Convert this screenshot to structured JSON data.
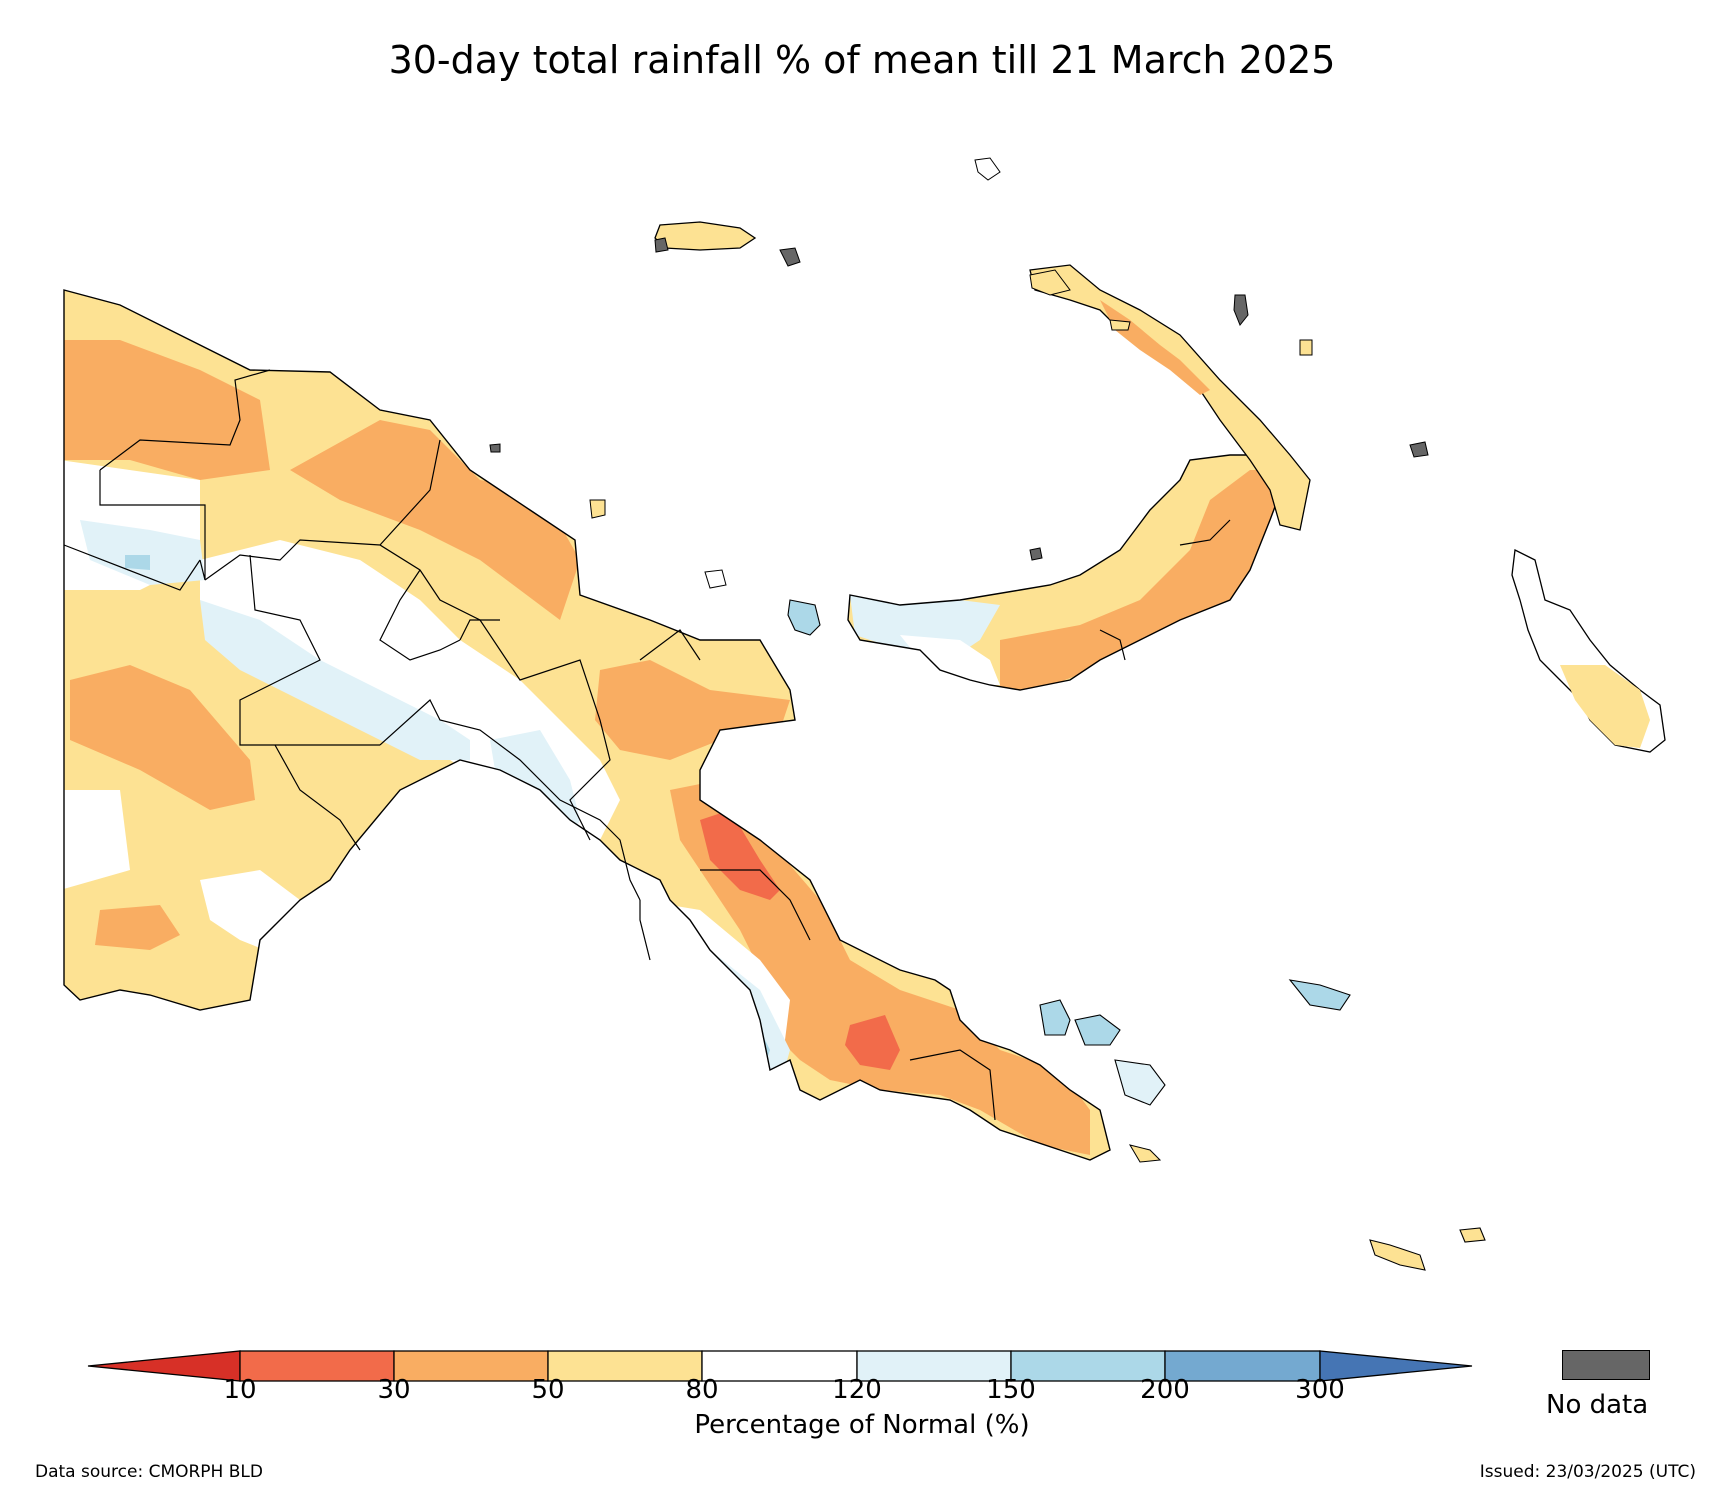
{
  "title": "30-day total rainfall % of mean till 21 March 2025",
  "colorbar": {
    "axis_label": "Percentage of Normal (%)",
    "ticks": [
      "10",
      "30",
      "50",
      "80",
      "120",
      "150",
      "200",
      "300"
    ],
    "colors": [
      "#f26b4a",
      "#f9ad62",
      "#fde293",
      "#ffffff",
      "#e1f2f8",
      "#acd8e8",
      "#74a9d0"
    ],
    "under_color": "#d73027",
    "over_color": "#4575b4"
  },
  "no_data": {
    "label": "No data",
    "color": "#666666"
  },
  "footer": {
    "source": "Data source: CMORPH BLD",
    "issued": "Issued: 23/03/2025 (UTC)"
  }
}
